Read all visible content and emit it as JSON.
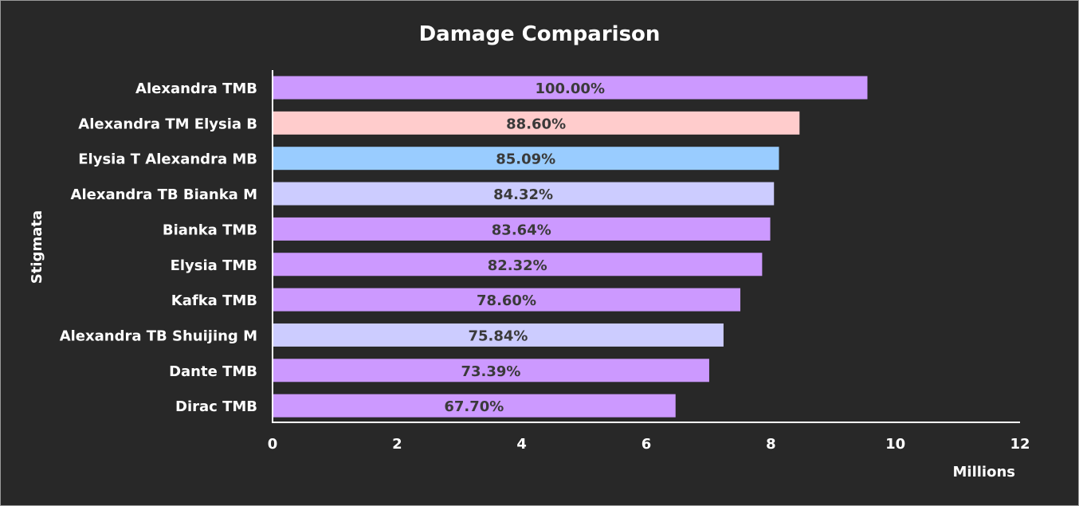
{
  "chart_data": {
    "type": "bar",
    "orientation": "horizontal",
    "title": "Damage Comparison",
    "xlabel": "Millions",
    "ylabel": "Stigmata",
    "xlim": [
      0,
      12
    ],
    "xticks": [
      0,
      2,
      4,
      6,
      8,
      10,
      12
    ],
    "grid": false,
    "categories": [
      "Alexandra TMB",
      "Alexandra TM Elysia B",
      "Elysia T Alexandra MB",
      "Alexandra TB Bianka M",
      "Bianka TMB",
      "Elysia TMB",
      "Kafka TMB",
      "Alexandra TB Shuijing M",
      "Dante TMB",
      "Dirac TMB"
    ],
    "values": [
      9.55,
      8.46,
      8.13,
      8.05,
      7.99,
      7.86,
      7.51,
      7.24,
      7.01,
      6.47
    ],
    "labels": [
      "100.00%",
      "88.60%",
      "85.09%",
      "84.32%",
      "83.64%",
      "82.32%",
      "78.60%",
      "75.84%",
      "73.39%",
      "67.70%"
    ],
    "colors": [
      "#cc99ff",
      "#ffcccc",
      "#99ccff",
      "#ccccff",
      "#cc99ff",
      "#cc99ff",
      "#cc99ff",
      "#ccccff",
      "#cc99ff",
      "#cc99ff"
    ]
  }
}
